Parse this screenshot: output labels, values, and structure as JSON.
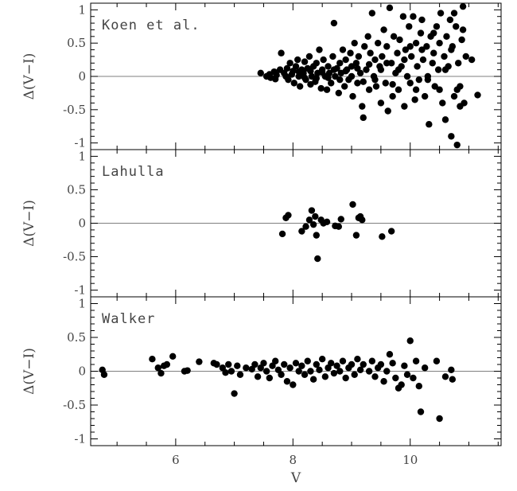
{
  "chart_data": [
    {
      "type": "scatter",
      "label": "Koen et al.",
      "ylabel": "Δ(V−I)",
      "ylim": [
        -1.1,
        1.1
      ],
      "yticks": [
        1,
        0.5,
        0,
        -0.5,
        -1
      ],
      "ytick_labels": [
        "1",
        "0.5",
        "0",
        "-0.5",
        "-1"
      ],
      "zero_line": true,
      "points": [
        [
          7.45,
          0.05
        ],
        [
          7.55,
          0.0
        ],
        [
          7.62,
          -0.02
        ],
        [
          7.68,
          0.07
        ],
        [
          7.72,
          0.02
        ],
        [
          7.78,
          0.1
        ],
        [
          7.8,
          0.35
        ],
        [
          7.85,
          0.05
        ],
        [
          7.9,
          0.12
        ],
        [
          7.92,
          -0.05
        ],
        [
          7.95,
          0.2
        ],
        [
          8.0,
          0.08
        ],
        [
          8.02,
          -0.1
        ],
        [
          8.05,
          0.15
        ],
        [
          8.08,
          0.25
        ],
        [
          8.1,
          0.0
        ],
        [
          8.12,
          -0.15
        ],
        [
          8.15,
          0.1
        ],
        [
          8.18,
          0.05
        ],
        [
          8.2,
          0.22
        ],
        [
          8.22,
          -0.05
        ],
        [
          8.25,
          0.12
        ],
        [
          8.28,
          0.3
        ],
        [
          8.3,
          -0.12
        ],
        [
          8.32,
          0.0
        ],
        [
          8.35,
          0.15
        ],
        [
          8.38,
          -0.08
        ],
        [
          8.4,
          0.2
        ],
        [
          8.42,
          0.05
        ],
        [
          8.45,
          0.4
        ],
        [
          8.48,
          -0.18
        ],
        [
          8.5,
          0.1
        ],
        [
          8.52,
          0.25
        ],
        [
          8.55,
          0.0
        ],
        [
          8.58,
          -0.2
        ],
        [
          8.6,
          0.15
        ],
        [
          8.62,
          0.05
        ],
        [
          8.65,
          -0.1
        ],
        [
          8.68,
          0.3
        ],
        [
          8.7,
          0.8
        ],
        [
          8.72,
          0.0
        ],
        [
          8.75,
          0.12
        ],
        [
          8.78,
          -0.25
        ],
        [
          8.8,
          0.2
        ],
        [
          8.82,
          0.05
        ],
        [
          8.85,
          0.4
        ],
        [
          8.88,
          -0.15
        ],
        [
          8.9,
          0.25
        ],
        [
          8.92,
          0.1
        ],
        [
          8.95,
          -0.05
        ],
        [
          8.98,
          0.35
        ],
        [
          9.0,
          0.15
        ],
        [
          9.02,
          -0.3
        ],
        [
          9.05,
          0.5
        ],
        [
          9.08,
          0.2
        ],
        [
          9.1,
          -0.1
        ],
        [
          9.12,
          0.3
        ],
        [
          9.15,
          0.05
        ],
        [
          9.18,
          -0.45
        ],
        [
          9.2,
          -0.62
        ],
        [
          9.22,
          0.45
        ],
        [
          9.25,
          0.1
        ],
        [
          9.28,
          0.6
        ],
        [
          9.3,
          -0.2
        ],
        [
          9.32,
          0.35
        ],
        [
          9.35,
          0.95
        ],
        [
          9.38,
          0.0
        ],
        [
          9.4,
          0.25
        ],
        [
          9.42,
          -0.15
        ],
        [
          9.45,
          0.5
        ],
        [
          9.48,
          0.15
        ],
        [
          9.5,
          -0.4
        ],
        [
          9.52,
          0.3
        ],
        [
          9.55,
          0.7
        ],
        [
          9.58,
          -0.1
        ],
        [
          9.6,
          0.45
        ],
        [
          9.62,
          -0.52
        ],
        [
          9.65,
          1.03
        ],
        [
          9.68,
          0.2
        ],
        [
          9.7,
          -0.3
        ],
        [
          9.72,
          0.6
        ],
        [
          9.75,
          0.05
        ],
        [
          9.78,
          0.35
        ],
        [
          9.8,
          -0.2
        ],
        [
          9.82,
          0.55
        ],
        [
          9.85,
          0.15
        ],
        [
          9.88,
          0.9
        ],
        [
          9.9,
          -0.45
        ],
        [
          9.92,
          0.4
        ],
        [
          9.95,
          0.0
        ],
        [
          9.98,
          0.75
        ],
        [
          10.0,
          -0.1
        ],
        [
          10.02,
          0.3
        ],
        [
          10.05,
          0.9
        ],
        [
          10.08,
          -0.35
        ],
        [
          10.1,
          0.5
        ],
        [
          10.12,
          0.15
        ],
        [
          10.15,
          -0.05
        ],
        [
          10.18,
          0.65
        ],
        [
          10.2,
          0.85
        ],
        [
          10.22,
          0.25
        ],
        [
          10.25,
          -0.3
        ],
        [
          10.28,
          0.45
        ],
        [
          10.3,
          0.0
        ],
        [
          10.32,
          -0.72
        ],
        [
          10.35,
          0.6
        ],
        [
          10.38,
          0.2
        ],
        [
          10.4,
          0.35
        ],
        [
          10.42,
          -0.15
        ],
        [
          10.45,
          0.75
        ],
        [
          10.48,
          0.1
        ],
        [
          10.5,
          0.5
        ],
        [
          10.52,
          0.95
        ],
        [
          10.55,
          -0.4
        ],
        [
          10.58,
          0.3
        ],
        [
          10.6,
          -0.65
        ],
        [
          10.62,
          0.6
        ],
        [
          10.65,
          0.15
        ],
        [
          10.68,
          0.85
        ],
        [
          10.7,
          -0.9
        ],
        [
          10.72,
          0.45
        ],
        [
          10.75,
          -0.3
        ],
        [
          10.78,
          0.75
        ],
        [
          10.8,
          -1.03
        ],
        [
          10.82,
          0.2
        ],
        [
          10.85,
          -0.15
        ],
        [
          10.88,
          0.55
        ],
        [
          10.9,
          1.05
        ],
        [
          10.92,
          -0.4
        ],
        [
          10.95,
          0.3
        ],
        [
          11.05,
          0.25
        ],
        [
          11.15,
          -0.28
        ],
        [
          7.6,
          0.03
        ],
        [
          7.7,
          -0.04
        ],
        [
          7.88,
          0.0
        ],
        [
          7.98,
          0.03
        ],
        [
          8.1,
          0.07
        ],
        [
          8.2,
          -0.02
        ],
        [
          8.3,
          0.08
        ],
        [
          8.4,
          -0.03
        ],
        [
          8.5,
          0.06
        ],
        [
          8.6,
          -0.02
        ],
        [
          8.7,
          0.1
        ],
        [
          8.8,
          -0.05
        ],
        [
          8.9,
          0.08
        ],
        [
          9.0,
          0.0
        ],
        [
          9.1,
          0.12
        ],
        [
          9.2,
          -0.08
        ],
        [
          9.3,
          0.18
        ],
        [
          9.4,
          -0.05
        ],
        [
          9.5,
          0.1
        ],
        [
          9.6,
          0.2
        ],
        [
          9.7,
          -0.12
        ],
        [
          9.8,
          0.1
        ],
        [
          9.9,
          0.25
        ],
        [
          10.0,
          0.45
        ],
        [
          10.1,
          -0.2
        ],
        [
          10.2,
          0.4
        ],
        [
          10.3,
          -0.05
        ],
        [
          10.4,
          0.65
        ],
        [
          10.5,
          -0.2
        ],
        [
          10.6,
          0.1
        ],
        [
          10.7,
          0.4
        ],
        [
          10.8,
          -0.2
        ],
        [
          10.9,
          0.7
        ],
        [
          10.75,
          0.95
        ],
        [
          10.85,
          -0.45
        ]
      ]
    },
    {
      "type": "scatter",
      "label": "Lahulla",
      "ylabel": "Δ(V−I)",
      "ylim": [
        -1.1,
        1.1
      ],
      "yticks": [
        1,
        0.5,
        0,
        -0.5,
        -1
      ],
      "ytick_labels": [
        "1",
        "0.5",
        "0",
        "-0.5",
        "-1"
      ],
      "zero_line": true,
      "points": [
        [
          7.82,
          -0.16
        ],
        [
          7.88,
          0.08
        ],
        [
          7.92,
          0.12
        ],
        [
          8.15,
          -0.12
        ],
        [
          8.22,
          -0.05
        ],
        [
          8.28,
          0.05
        ],
        [
          8.32,
          0.19
        ],
        [
          8.35,
          -0.02
        ],
        [
          8.38,
          0.1
        ],
        [
          8.4,
          -0.18
        ],
        [
          8.42,
          -0.53
        ],
        [
          8.48,
          0.05
        ],
        [
          8.52,
          0.0
        ],
        [
          8.58,
          0.02
        ],
        [
          8.72,
          -0.04
        ],
        [
          8.78,
          -0.05
        ],
        [
          8.82,
          0.06
        ],
        [
          9.02,
          0.28
        ],
        [
          9.08,
          -0.18
        ],
        [
          9.12,
          0.08
        ],
        [
          9.15,
          0.1
        ],
        [
          9.18,
          0.05
        ],
        [
          9.52,
          -0.2
        ],
        [
          9.68,
          -0.12
        ]
      ]
    },
    {
      "type": "scatter",
      "label": "Walker",
      "ylabel": "Δ(V−I)",
      "xlabel": "V",
      "xlim": [
        4.55,
        11.55
      ],
      "xticks": [
        6,
        8,
        10
      ],
      "ylim": [
        -1.1,
        1.1
      ],
      "yticks": [
        1,
        0.5,
        0,
        -0.5,
        -1
      ],
      "ytick_labels": [
        "1",
        "0.5",
        "0",
        "-0.5",
        "-1"
      ],
      "zero_line": true,
      "points": [
        [
          4.75,
          0.02
        ],
        [
          4.78,
          -0.05
        ],
        [
          5.6,
          0.18
        ],
        [
          5.7,
          0.05
        ],
        [
          5.75,
          -0.03
        ],
        [
          5.8,
          0.08
        ],
        [
          5.85,
          0.1
        ],
        [
          5.95,
          0.22
        ],
        [
          6.15,
          0.0
        ],
        [
          6.2,
          0.01
        ],
        [
          6.4,
          0.14
        ],
        [
          6.65,
          0.12
        ],
        [
          6.7,
          0.1
        ],
        [
          6.8,
          0.05
        ],
        [
          6.85,
          -0.02
        ],
        [
          6.9,
          0.1
        ],
        [
          6.95,
          0.0
        ],
        [
          7.0,
          -0.33
        ],
        [
          7.05,
          0.08
        ],
        [
          7.1,
          -0.05
        ],
        [
          7.2,
          0.05
        ],
        [
          7.3,
          0.03
        ],
        [
          7.35,
          0.1
        ],
        [
          7.4,
          -0.08
        ],
        [
          7.45,
          0.05
        ],
        [
          7.5,
          0.12
        ],
        [
          7.55,
          0.0
        ],
        [
          7.6,
          -0.1
        ],
        [
          7.65,
          0.08
        ],
        [
          7.7,
          0.15
        ],
        [
          7.75,
          0.02
        ],
        [
          7.8,
          -0.05
        ],
        [
          7.85,
          0.1
        ],
        [
          7.9,
          -0.15
        ],
        [
          7.95,
          0.05
        ],
        [
          8.0,
          -0.2
        ],
        [
          8.05,
          0.12
        ],
        [
          8.1,
          0.0
        ],
        [
          8.15,
          0.08
        ],
        [
          8.2,
          -0.05
        ],
        [
          8.25,
          0.15
        ],
        [
          8.3,
          0.0
        ],
        [
          8.35,
          -0.12
        ],
        [
          8.4,
          0.1
        ],
        [
          8.45,
          0.02
        ],
        [
          8.5,
          0.18
        ],
        [
          8.55,
          -0.08
        ],
        [
          8.6,
          0.05
        ],
        [
          8.65,
          0.12
        ],
        [
          8.7,
          -0.03
        ],
        [
          8.75,
          0.08
        ],
        [
          8.8,
          0.0
        ],
        [
          8.85,
          0.15
        ],
        [
          8.9,
          -0.1
        ],
        [
          8.95,
          0.05
        ],
        [
          9.0,
          0.1
        ],
        [
          9.05,
          -0.05
        ],
        [
          9.1,
          0.18
        ],
        [
          9.15,
          0.02
        ],
        [
          9.2,
          0.1
        ],
        [
          9.3,
          0.0
        ],
        [
          9.35,
          0.15
        ],
        [
          9.4,
          -0.08
        ],
        [
          9.45,
          0.05
        ],
        [
          9.5,
          0.1
        ],
        [
          9.55,
          -0.15
        ],
        [
          9.6,
          0.0
        ],
        [
          9.65,
          0.25
        ],
        [
          9.7,
          0.12
        ],
        [
          9.75,
          -0.1
        ],
        [
          9.8,
          -0.25
        ],
        [
          9.85,
          -0.2
        ],
        [
          9.9,
          0.08
        ],
        [
          9.95,
          -0.05
        ],
        [
          10.0,
          0.45
        ],
        [
          10.05,
          -0.1
        ],
        [
          10.1,
          0.15
        ],
        [
          10.15,
          -0.22
        ],
        [
          10.18,
          -0.6
        ],
        [
          10.25,
          0.05
        ],
        [
          10.45,
          0.15
        ],
        [
          10.5,
          -0.7
        ],
        [
          10.6,
          -0.08
        ],
        [
          10.7,
          0.02
        ],
        [
          10.72,
          -0.12
        ]
      ]
    }
  ]
}
